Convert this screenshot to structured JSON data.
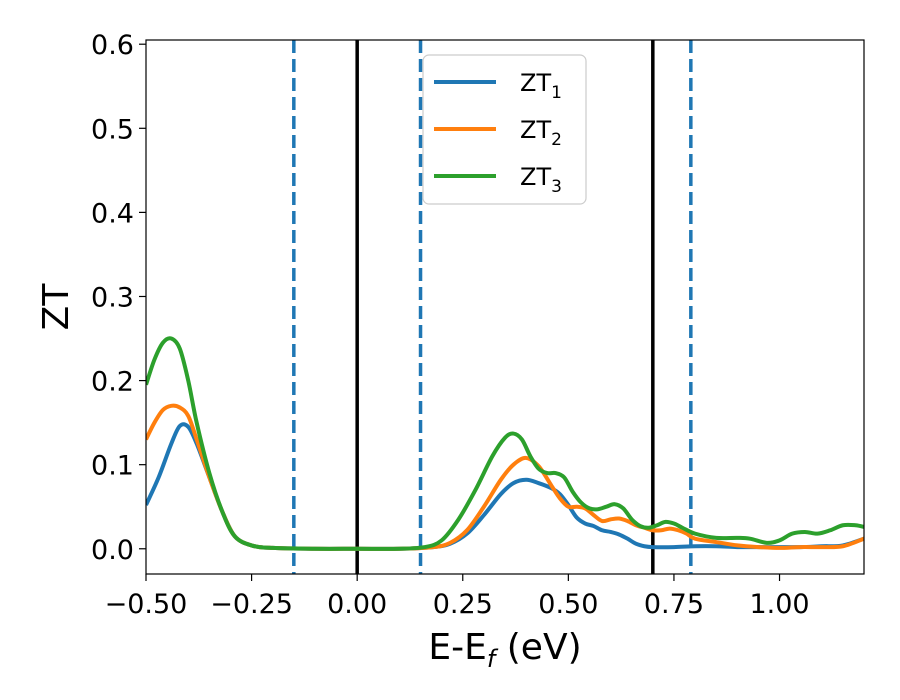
{
  "chart_data": {
    "type": "line",
    "title": "",
    "xlabel": "E-E",
    "xlabel_sub": "f",
    "xlabel_unit": " (eV)",
    "ylabel": "ZT",
    "xlim": [
      -0.5,
      1.2
    ],
    "ylim": [
      -0.03,
      0.605
    ],
    "grid": false,
    "legend_position": "top-center",
    "x_ticks": [
      -0.5,
      -0.25,
      0.0,
      0.25,
      0.5,
      0.75,
      1.0
    ],
    "x_tick_labels": [
      "−0.50",
      "−0.25",
      "0.00",
      "0.25",
      "0.50",
      "0.75",
      "1.00"
    ],
    "y_ticks": [
      0.0,
      0.1,
      0.2,
      0.3,
      0.4,
      0.5,
      0.6
    ],
    "y_tick_labels": [
      "0.0",
      "0.1",
      "0.2",
      "0.3",
      "0.4",
      "0.5",
      "0.6"
    ],
    "vertical_lines": [
      {
        "x": -0.15,
        "style": "dashed",
        "color": "#1f77b4"
      },
      {
        "x": 0.0,
        "style": "solid",
        "color": "#000000"
      },
      {
        "x": 0.15,
        "style": "dashed",
        "color": "#1f77b4"
      },
      {
        "x": 0.7,
        "style": "solid",
        "color": "#000000"
      },
      {
        "x": 0.79,
        "style": "dashed",
        "color": "#1f77b4"
      }
    ],
    "series": [
      {
        "name": "ZT",
        "sub": "1",
        "color": "#1f77b4",
        "points": [
          [
            -0.5,
            0.052
          ],
          [
            -0.47,
            0.085
          ],
          [
            -0.44,
            0.125
          ],
          [
            -0.42,
            0.146
          ],
          [
            -0.4,
            0.145
          ],
          [
            -0.38,
            0.125
          ],
          [
            -0.35,
            0.085
          ],
          [
            -0.32,
            0.045
          ],
          [
            -0.29,
            0.015
          ],
          [
            -0.25,
            0.004
          ],
          [
            -0.2,
            0.001
          ],
          [
            -0.1,
            0.0
          ],
          [
            0.0,
            0.0
          ],
          [
            0.1,
            0.0
          ],
          [
            0.18,
            0.002
          ],
          [
            0.22,
            0.006
          ],
          [
            0.26,
            0.018
          ],
          [
            0.3,
            0.04
          ],
          [
            0.34,
            0.065
          ],
          [
            0.37,
            0.078
          ],
          [
            0.4,
            0.082
          ],
          [
            0.43,
            0.078
          ],
          [
            0.46,
            0.072
          ],
          [
            0.48,
            0.065
          ],
          [
            0.5,
            0.052
          ],
          [
            0.52,
            0.037
          ],
          [
            0.54,
            0.03
          ],
          [
            0.56,
            0.027
          ],
          [
            0.58,
            0.022
          ],
          [
            0.6,
            0.02
          ],
          [
            0.62,
            0.017
          ],
          [
            0.64,
            0.012
          ],
          [
            0.66,
            0.006
          ],
          [
            0.68,
            0.003
          ],
          [
            0.7,
            0.002
          ],
          [
            0.75,
            0.002
          ],
          [
            0.8,
            0.003
          ],
          [
            0.85,
            0.003
          ],
          [
            0.9,
            0.002
          ],
          [
            0.95,
            0.002
          ],
          [
            1.0,
            0.002
          ],
          [
            1.05,
            0.002
          ],
          [
            1.1,
            0.003
          ],
          [
            1.15,
            0.004
          ],
          [
            1.2,
            0.012
          ]
        ]
      },
      {
        "name": "ZT",
        "sub": "2",
        "color": "#ff7f0e",
        "points": [
          [
            -0.5,
            0.13
          ],
          [
            -0.48,
            0.15
          ],
          [
            -0.46,
            0.165
          ],
          [
            -0.44,
            0.17
          ],
          [
            -0.42,
            0.168
          ],
          [
            -0.4,
            0.158
          ],
          [
            -0.38,
            0.13
          ],
          [
            -0.35,
            0.085
          ],
          [
            -0.32,
            0.045
          ],
          [
            -0.29,
            0.015
          ],
          [
            -0.25,
            0.004
          ],
          [
            -0.2,
            0.001
          ],
          [
            -0.1,
            0.0
          ],
          [
            0.0,
            0.0
          ],
          [
            0.1,
            0.0
          ],
          [
            0.18,
            0.002
          ],
          [
            0.22,
            0.007
          ],
          [
            0.26,
            0.022
          ],
          [
            0.3,
            0.05
          ],
          [
            0.34,
            0.082
          ],
          [
            0.37,
            0.1
          ],
          [
            0.4,
            0.108
          ],
          [
            0.43,
            0.098
          ],
          [
            0.46,
            0.075
          ],
          [
            0.48,
            0.06
          ],
          [
            0.5,
            0.05
          ],
          [
            0.52,
            0.05
          ],
          [
            0.54,
            0.048
          ],
          [
            0.56,
            0.04
          ],
          [
            0.58,
            0.033
          ],
          [
            0.6,
            0.035
          ],
          [
            0.62,
            0.036
          ],
          [
            0.64,
            0.033
          ],
          [
            0.66,
            0.028
          ],
          [
            0.68,
            0.025
          ],
          [
            0.7,
            0.022
          ],
          [
            0.72,
            0.022
          ],
          [
            0.74,
            0.024
          ],
          [
            0.76,
            0.022
          ],
          [
            0.78,
            0.018
          ],
          [
            0.8,
            0.012
          ],
          [
            0.85,
            0.008
          ],
          [
            0.9,
            0.004
          ],
          [
            0.95,
            0.002
          ],
          [
            1.0,
            0.001
          ],
          [
            1.05,
            0.002
          ],
          [
            1.1,
            0.002
          ],
          [
            1.15,
            0.003
          ],
          [
            1.2,
            0.012
          ]
        ]
      },
      {
        "name": "ZT",
        "sub": "3",
        "color": "#2ca02c",
        "points": [
          [
            -0.5,
            0.195
          ],
          [
            -0.48,
            0.225
          ],
          [
            -0.46,
            0.245
          ],
          [
            -0.44,
            0.25
          ],
          [
            -0.42,
            0.238
          ],
          [
            -0.4,
            0.2
          ],
          [
            -0.38,
            0.15
          ],
          [
            -0.35,
            0.09
          ],
          [
            -0.32,
            0.045
          ],
          [
            -0.29,
            0.015
          ],
          [
            -0.25,
            0.004
          ],
          [
            -0.2,
            0.001
          ],
          [
            -0.1,
            0.0
          ],
          [
            0.0,
            0.0
          ],
          [
            0.1,
            0.0
          ],
          [
            0.16,
            0.002
          ],
          [
            0.2,
            0.01
          ],
          [
            0.24,
            0.035
          ],
          [
            0.28,
            0.07
          ],
          [
            0.32,
            0.11
          ],
          [
            0.35,
            0.132
          ],
          [
            0.37,
            0.137
          ],
          [
            0.39,
            0.13
          ],
          [
            0.41,
            0.11
          ],
          [
            0.43,
            0.095
          ],
          [
            0.45,
            0.09
          ],
          [
            0.47,
            0.09
          ],
          [
            0.49,
            0.085
          ],
          [
            0.51,
            0.068
          ],
          [
            0.53,
            0.055
          ],
          [
            0.55,
            0.048
          ],
          [
            0.57,
            0.047
          ],
          [
            0.59,
            0.05
          ],
          [
            0.61,
            0.053
          ],
          [
            0.63,
            0.048
          ],
          [
            0.65,
            0.035
          ],
          [
            0.67,
            0.027
          ],
          [
            0.69,
            0.025
          ],
          [
            0.71,
            0.028
          ],
          [
            0.73,
            0.032
          ],
          [
            0.75,
            0.03
          ],
          [
            0.77,
            0.025
          ],
          [
            0.8,
            0.018
          ],
          [
            0.85,
            0.013
          ],
          [
            0.9,
            0.013
          ],
          [
            0.93,
            0.012
          ],
          [
            0.97,
            0.007
          ],
          [
            1.0,
            0.01
          ],
          [
            1.03,
            0.018
          ],
          [
            1.06,
            0.02
          ],
          [
            1.09,
            0.018
          ],
          [
            1.12,
            0.022
          ],
          [
            1.15,
            0.028
          ],
          [
            1.18,
            0.028
          ],
          [
            1.2,
            0.026
          ]
        ]
      }
    ]
  }
}
